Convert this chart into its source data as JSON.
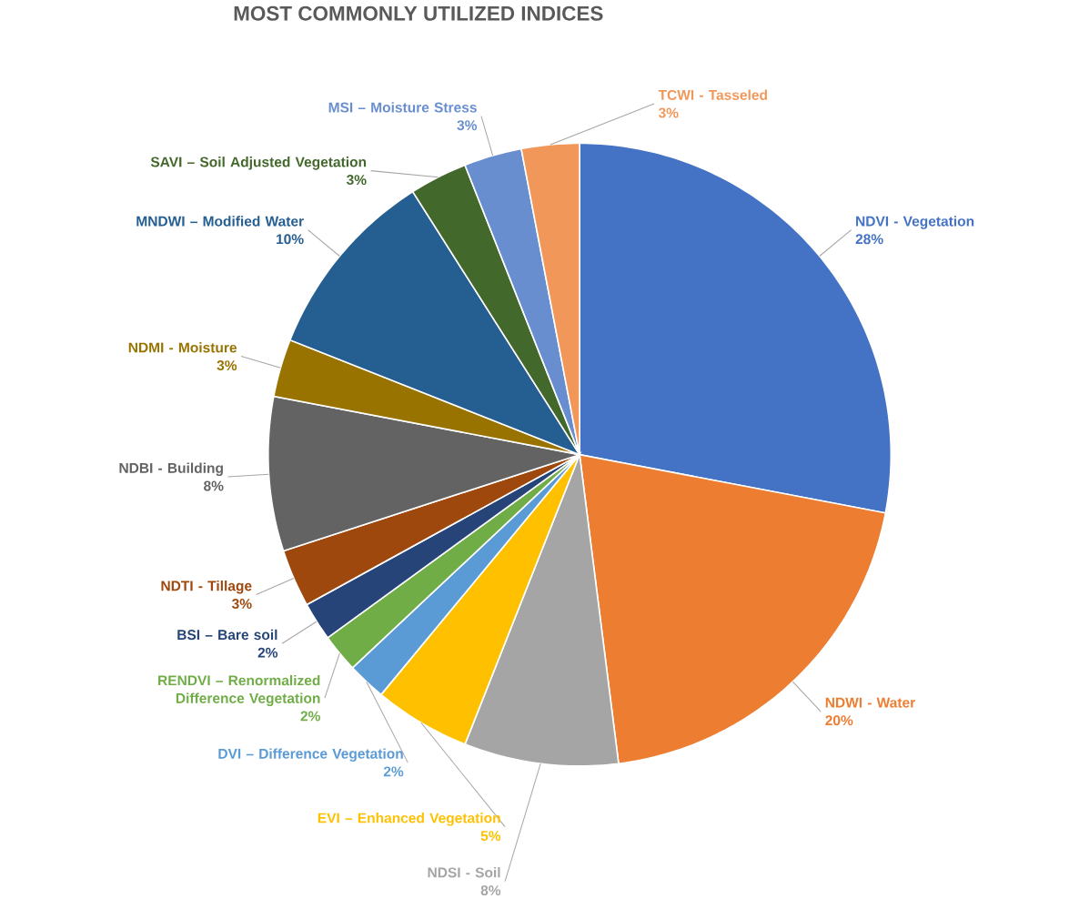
{
  "chart_data": {
    "type": "pie",
    "title": "MOST COMMONLY UTILIZED INDICES",
    "categories": [
      "NDVI - Vegetation",
      "NDWI - Water",
      "NDSI - Soil",
      "EVI – Enhanced Vegetation",
      "DVI – Difference Vegetation",
      "RENDVI – Renormalized Difference Vegetation",
      "BSI – Bare soil",
      "NDTI - Tillage",
      "NDBI - Building",
      "NDMI - Moisture",
      "MNDWI – Modified Water",
      "SAVI – Soil Adjusted Vegetation",
      "MSI – Moisture Stress",
      "TCWI - Tasseled"
    ],
    "values": [
      28,
      20,
      8,
      5,
      2,
      2,
      2,
      3,
      8,
      3,
      10,
      3,
      3,
      3
    ],
    "value_labels": [
      "28%",
      "20%",
      "8%",
      "5%",
      "2%",
      "2%",
      "2%",
      "3%",
      "8%",
      "3%",
      "10%",
      "3%",
      "3%",
      "3%"
    ],
    "colors": [
      "#4472c4",
      "#ed7d31",
      "#a5a5a5",
      "#ffc000",
      "#5b9bd5",
      "#70ad47",
      "#264478",
      "#9e480e",
      "#636363",
      "#997300",
      "#255e91",
      "#43682b",
      "#698ed0",
      "#f1975a"
    ]
  }
}
